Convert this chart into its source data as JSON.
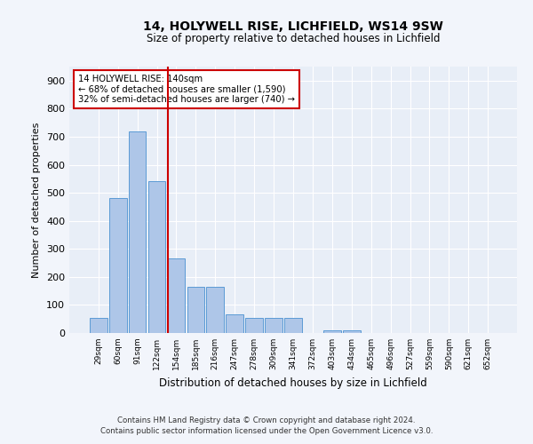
{
  "title_line1": "14, HOLYWELL RISE, LICHFIELD, WS14 9SW",
  "title_line2": "Size of property relative to detached houses in Lichfield",
  "xlabel": "Distribution of detached houses by size in Lichfield",
  "ylabel": "Number of detached properties",
  "categories": [
    "29sqm",
    "60sqm",
    "91sqm",
    "122sqm",
    "154sqm",
    "185sqm",
    "216sqm",
    "247sqm",
    "278sqm",
    "309sqm",
    "341sqm",
    "372sqm",
    "403sqm",
    "434sqm",
    "465sqm",
    "496sqm",
    "527sqm",
    "559sqm",
    "590sqm",
    "621sqm",
    "652sqm"
  ],
  "values": [
    55,
    480,
    720,
    540,
    265,
    165,
    165,
    65,
    55,
    55,
    55,
    0,
    10,
    10,
    0,
    0,
    0,
    0,
    0,
    0,
    0
  ],
  "bar_color": "#aec6e8",
  "bar_edge_color": "#5b9bd5",
  "annotation_line1": "14 HOLYWELL RISE: 140sqm",
  "annotation_line2": "← 68% of detached houses are smaller (1,590)",
  "annotation_line3": "32% of semi-detached houses are larger (740) →",
  "annotation_box_color": "#ffffff",
  "annotation_box_edge": "#cc0000",
  "vline_color": "#cc0000",
  "ylim": [
    0,
    950
  ],
  "yticks": [
    0,
    100,
    200,
    300,
    400,
    500,
    600,
    700,
    800,
    900
  ],
  "footer_line1": "Contains HM Land Registry data © Crown copyright and database right 2024.",
  "footer_line2": "Contains public sector information licensed under the Open Government Licence v3.0.",
  "bg_color": "#f2f5fb",
  "plot_bg_color": "#e8eef7"
}
